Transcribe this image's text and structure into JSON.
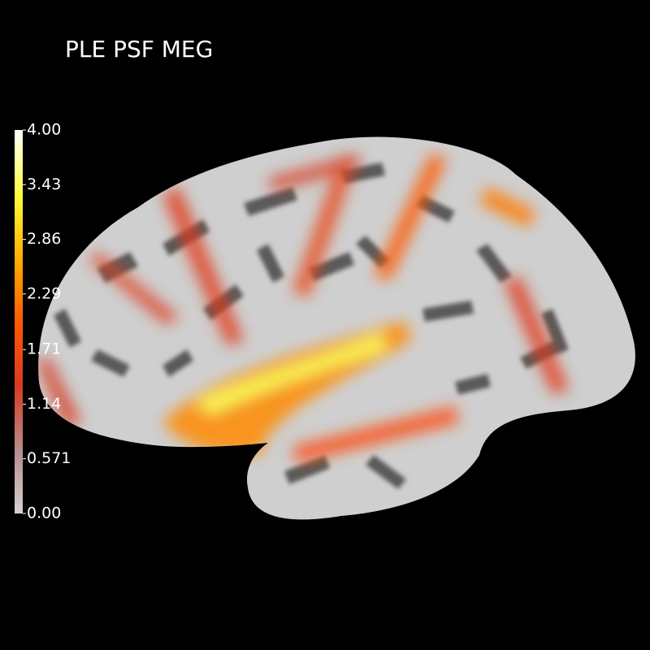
{
  "title": "PLE PSF MEG",
  "colorbar": {
    "clim": [
      0,
      4
    ],
    "ticks": [
      {
        "value": 0,
        "label": "0.00"
      },
      0.571,
      1.14,
      1.71,
      2.29,
      2.86,
      3.43,
      {
        "value": 4,
        "label": "4.00"
      }
    ],
    "colormap": [
      "#d2d2d2",
      "#b88a8a",
      "#d83a22",
      "#ff5a00",
      "#ffae00",
      "#ffff40",
      "#ffffff"
    ]
  }
}
